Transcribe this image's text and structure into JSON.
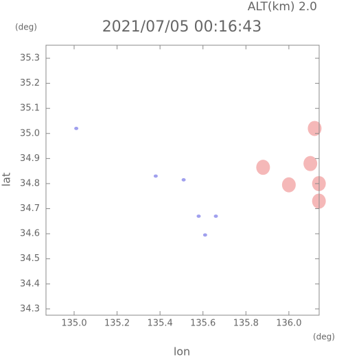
{
  "chart_data": {
    "type": "scatter",
    "title": "2021/07/05 00:16:43",
    "annotation": "ALT(km) 2.0",
    "xlabel": "lon",
    "ylabel": "lat",
    "xunit": "(deg)",
    "yunit": "(deg)",
    "xlim": [
      134.869,
      136.141
    ],
    "ylim": [
      34.275,
      35.352
    ],
    "xticks": [
      {
        "value": 135,
        "label": "135.0"
      },
      135.2,
      135.4,
      135.6,
      135.8,
      {
        "value": 136,
        "label": "136.0"
      }
    ],
    "yticks": [
      34.3,
      34.4,
      34.5,
      34.6,
      34.7,
      34.8,
      34.9,
      {
        "value": 35,
        "label": "35.0"
      },
      35.1,
      35.2,
      35.3
    ],
    "series": [
      {
        "color": "#a0a0ee",
        "x": [
          135.01,
          135.38,
          135.51,
          135.58,
          135.66,
          135.61
        ],
        "y": [
          35.02,
          34.83,
          34.815,
          34.67,
          34.67,
          34.595
        ]
      },
      {
        "color": "#f5b8b8",
        "x": [
          135.88,
          136.0,
          136.12,
          136.1,
          136.14,
          136.14
        ],
        "y": [
          34.865,
          34.795,
          35.02,
          34.88,
          34.8,
          34.73
        ]
      }
    ]
  }
}
